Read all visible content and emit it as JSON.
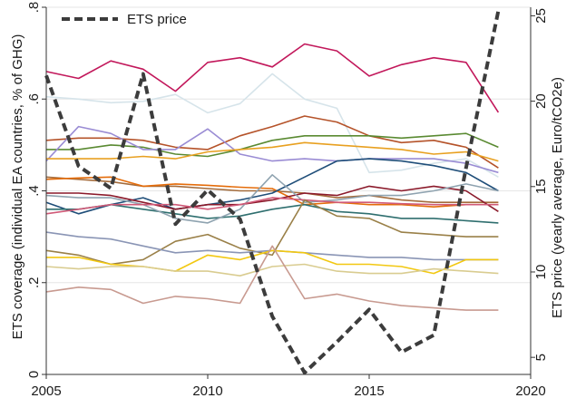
{
  "chart_data": {
    "type": "line",
    "title": "",
    "x": [
      2005,
      2006,
      2007,
      2008,
      2009,
      2010,
      2011,
      2012,
      2013,
      2014,
      2015,
      2016,
      2017,
      2018,
      2019
    ],
    "xlim": [
      2005,
      2020
    ],
    "xticks": [
      2005,
      2010,
      2015,
      2020
    ],
    "xtick_labels": [
      "2005",
      "2010",
      "2015",
      "2020"
    ],
    "ylabel": "ETS coverage (individual EA countries, % of GHG)",
    "ylim": [
      0,
      0.8
    ],
    "yticks": [
      0,
      0.2,
      0.4,
      0.6,
      0.8
    ],
    "ytick_labels": [
      "0",
      ".2",
      ".4",
      ".6",
      ".8"
    ],
    "y2label": "ETS price (yearly average, Euro/tCO2e)",
    "y2lim": [
      4,
      25.5
    ],
    "y2ticks": [
      5,
      10,
      15,
      20,
      25
    ],
    "y2tick_labels": [
      "5",
      "10",
      "15",
      "20",
      "25"
    ],
    "grid": "horizontal",
    "legend": {
      "position": "top-left",
      "entries": [
        "ETS price"
      ]
    },
    "price_series": {
      "name": "ETS price",
      "color": "#3c3c3c",
      "values": [
        21.5,
        16.2,
        14.9,
        21.6,
        12.8,
        14.8,
        13.1,
        7.4,
        4.1,
        5.9,
        7.8,
        5.3,
        6.3,
        16.1,
        25.3
      ]
    },
    "coverage_series": [
      {
        "color": "#c2185b",
        "values": [
          0.66,
          0.645,
          0.683,
          0.665,
          0.617,
          0.68,
          0.69,
          0.67,
          0.72,
          0.705,
          0.65,
          0.675,
          0.69,
          0.68,
          0.571
        ]
      },
      {
        "color": "#d6e4ea",
        "values": [
          0.605,
          0.6,
          0.592,
          0.595,
          0.61,
          0.57,
          0.59,
          0.655,
          0.6,
          0.58,
          0.44,
          0.445,
          0.46,
          0.47,
          0.43
        ]
      },
      {
        "color": "#b5532a",
        "values": [
          0.51,
          0.515,
          0.515,
          0.51,
          0.495,
          0.49,
          0.52,
          0.54,
          0.563,
          0.55,
          0.52,
          0.505,
          0.51,
          0.495,
          0.45
        ]
      },
      {
        "color": "#5a8a32",
        "values": [
          0.49,
          0.49,
          0.5,
          0.495,
          0.48,
          0.475,
          0.49,
          0.51,
          0.52,
          0.52,
          0.52,
          0.515,
          0.52,
          0.525,
          0.495
        ]
      },
      {
        "color": "#9a8cd4",
        "values": [
          0.465,
          0.54,
          0.525,
          0.49,
          0.49,
          0.535,
          0.48,
          0.465,
          0.47,
          0.465,
          0.47,
          0.47,
          0.47,
          0.46,
          0.44
        ]
      },
      {
        "color": "#e8a020",
        "values": [
          0.47,
          0.47,
          0.47,
          0.475,
          0.47,
          0.485,
          0.49,
          0.495,
          0.505,
          0.5,
          0.495,
          0.49,
          0.48,
          0.485,
          0.465
        ]
      },
      {
        "color": "#a46c3c",
        "values": [
          0.43,
          0.425,
          0.42,
          0.41,
          0.41,
          0.405,
          0.4,
          0.4,
          0.395,
          0.385,
          0.39,
          0.38,
          0.375,
          0.375,
          0.375
        ]
      },
      {
        "color": "#e46c0a",
        "values": [
          0.425,
          0.428,
          0.43,
          0.41,
          0.415,
          0.412,
          0.408,
          0.405,
          0.37,
          0.375,
          0.37,
          0.37,
          0.365,
          0.37,
          0.37
        ]
      },
      {
        "color": "#1f4e79",
        "values": [
          0.375,
          0.35,
          0.37,
          0.385,
          0.36,
          0.37,
          0.38,
          0.395,
          0.43,
          0.465,
          0.47,
          0.465,
          0.455,
          0.44,
          0.4
        ]
      },
      {
        "color": "#2f6f6f",
        "values": [
          0.36,
          0.36,
          0.37,
          0.36,
          0.35,
          0.34,
          0.345,
          0.36,
          0.37,
          0.355,
          0.35,
          0.34,
          0.34,
          0.335,
          0.33
        ]
      },
      {
        "color": "#8b1a2b",
        "values": [
          0.395,
          0.395,
          0.39,
          0.375,
          0.36,
          0.37,
          0.37,
          0.38,
          0.395,
          0.39,
          0.41,
          0.4,
          0.41,
          0.4,
          0.355
        ]
      },
      {
        "color": "#8fa3b0",
        "values": [
          0.39,
          0.385,
          0.385,
          0.37,
          0.34,
          0.33,
          0.36,
          0.435,
          0.375,
          0.38,
          0.39,
          0.39,
          0.4,
          0.415,
          0.4
        ]
      },
      {
        "color": "#d05a78",
        "values": [
          0.35,
          0.36,
          0.37,
          0.37,
          0.37,
          0.36,
          0.37,
          0.385,
          0.38,
          0.375,
          0.375,
          0.372,
          0.37,
          0.37,
          0.37
        ]
      },
      {
        "color": "#9a8048",
        "values": [
          0.27,
          0.26,
          0.24,
          0.25,
          0.29,
          0.305,
          0.275,
          0.26,
          0.38,
          0.345,
          0.34,
          0.31,
          0.305,
          0.3,
          0.3
        ]
      },
      {
        "color": "#8a95b5",
        "values": [
          0.31,
          0.3,
          0.295,
          0.28,
          0.265,
          0.27,
          0.265,
          0.27,
          0.265,
          0.26,
          0.255,
          0.255,
          0.25,
          0.25,
          0.25
        ]
      },
      {
        "color": "#f2c811",
        "values": [
          0.255,
          0.255,
          0.24,
          0.235,
          0.225,
          0.26,
          0.25,
          0.27,
          0.265,
          0.24,
          0.24,
          0.235,
          0.22,
          0.25,
          0.25
        ]
      },
      {
        "color": "#d9cc90",
        "values": [
          0.235,
          0.23,
          0.235,
          0.235,
          0.225,
          0.225,
          0.215,
          0.235,
          0.24,
          0.225,
          0.22,
          0.22,
          0.23,
          0.225,
          0.22
        ]
      },
      {
        "color": "#c89a90",
        "values": [
          0.18,
          0.19,
          0.185,
          0.155,
          0.17,
          0.165,
          0.155,
          0.28,
          0.165,
          0.175,
          0.16,
          0.15,
          0.145,
          0.14,
          0.14
        ]
      }
    ]
  }
}
